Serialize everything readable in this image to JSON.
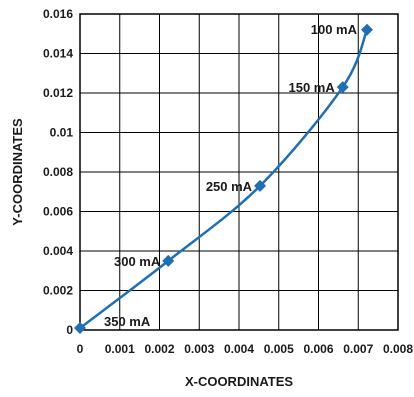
{
  "chart_data": {
    "type": "line",
    "title": "",
    "xlabel": "X-COORDINATES",
    "ylabel": "Y-COORDINATES",
    "xlim": [
      0,
      0.008
    ],
    "ylim": [
      0,
      0.016
    ],
    "x_ticks": [
      "0",
      "0.001",
      "0.002",
      "0.003",
      "0.004",
      "0.005",
      "0.006",
      "0.007",
      "0.008"
    ],
    "y_ticks": [
      "0",
      "0.002",
      "0.004",
      "0.006",
      "0.008",
      "0.01",
      "0.012",
      "0.014",
      "0.016"
    ],
    "grid": true,
    "series": [
      {
        "color": "#1f6fb2",
        "points": [
          {
            "x": 0.0,
            "y": 0.0001,
            "label": "350 mA"
          },
          {
            "x": 0.00222,
            "y": 0.0035,
            "label": "300 mA"
          },
          {
            "x": 0.00453,
            "y": 0.0073,
            "label": "250 mA"
          },
          {
            "x": 0.00661,
            "y": 0.0123,
            "label": "150 mA"
          },
          {
            "x": 0.00722,
            "y": 0.0152,
            "label": "100 mA"
          }
        ]
      }
    ]
  }
}
